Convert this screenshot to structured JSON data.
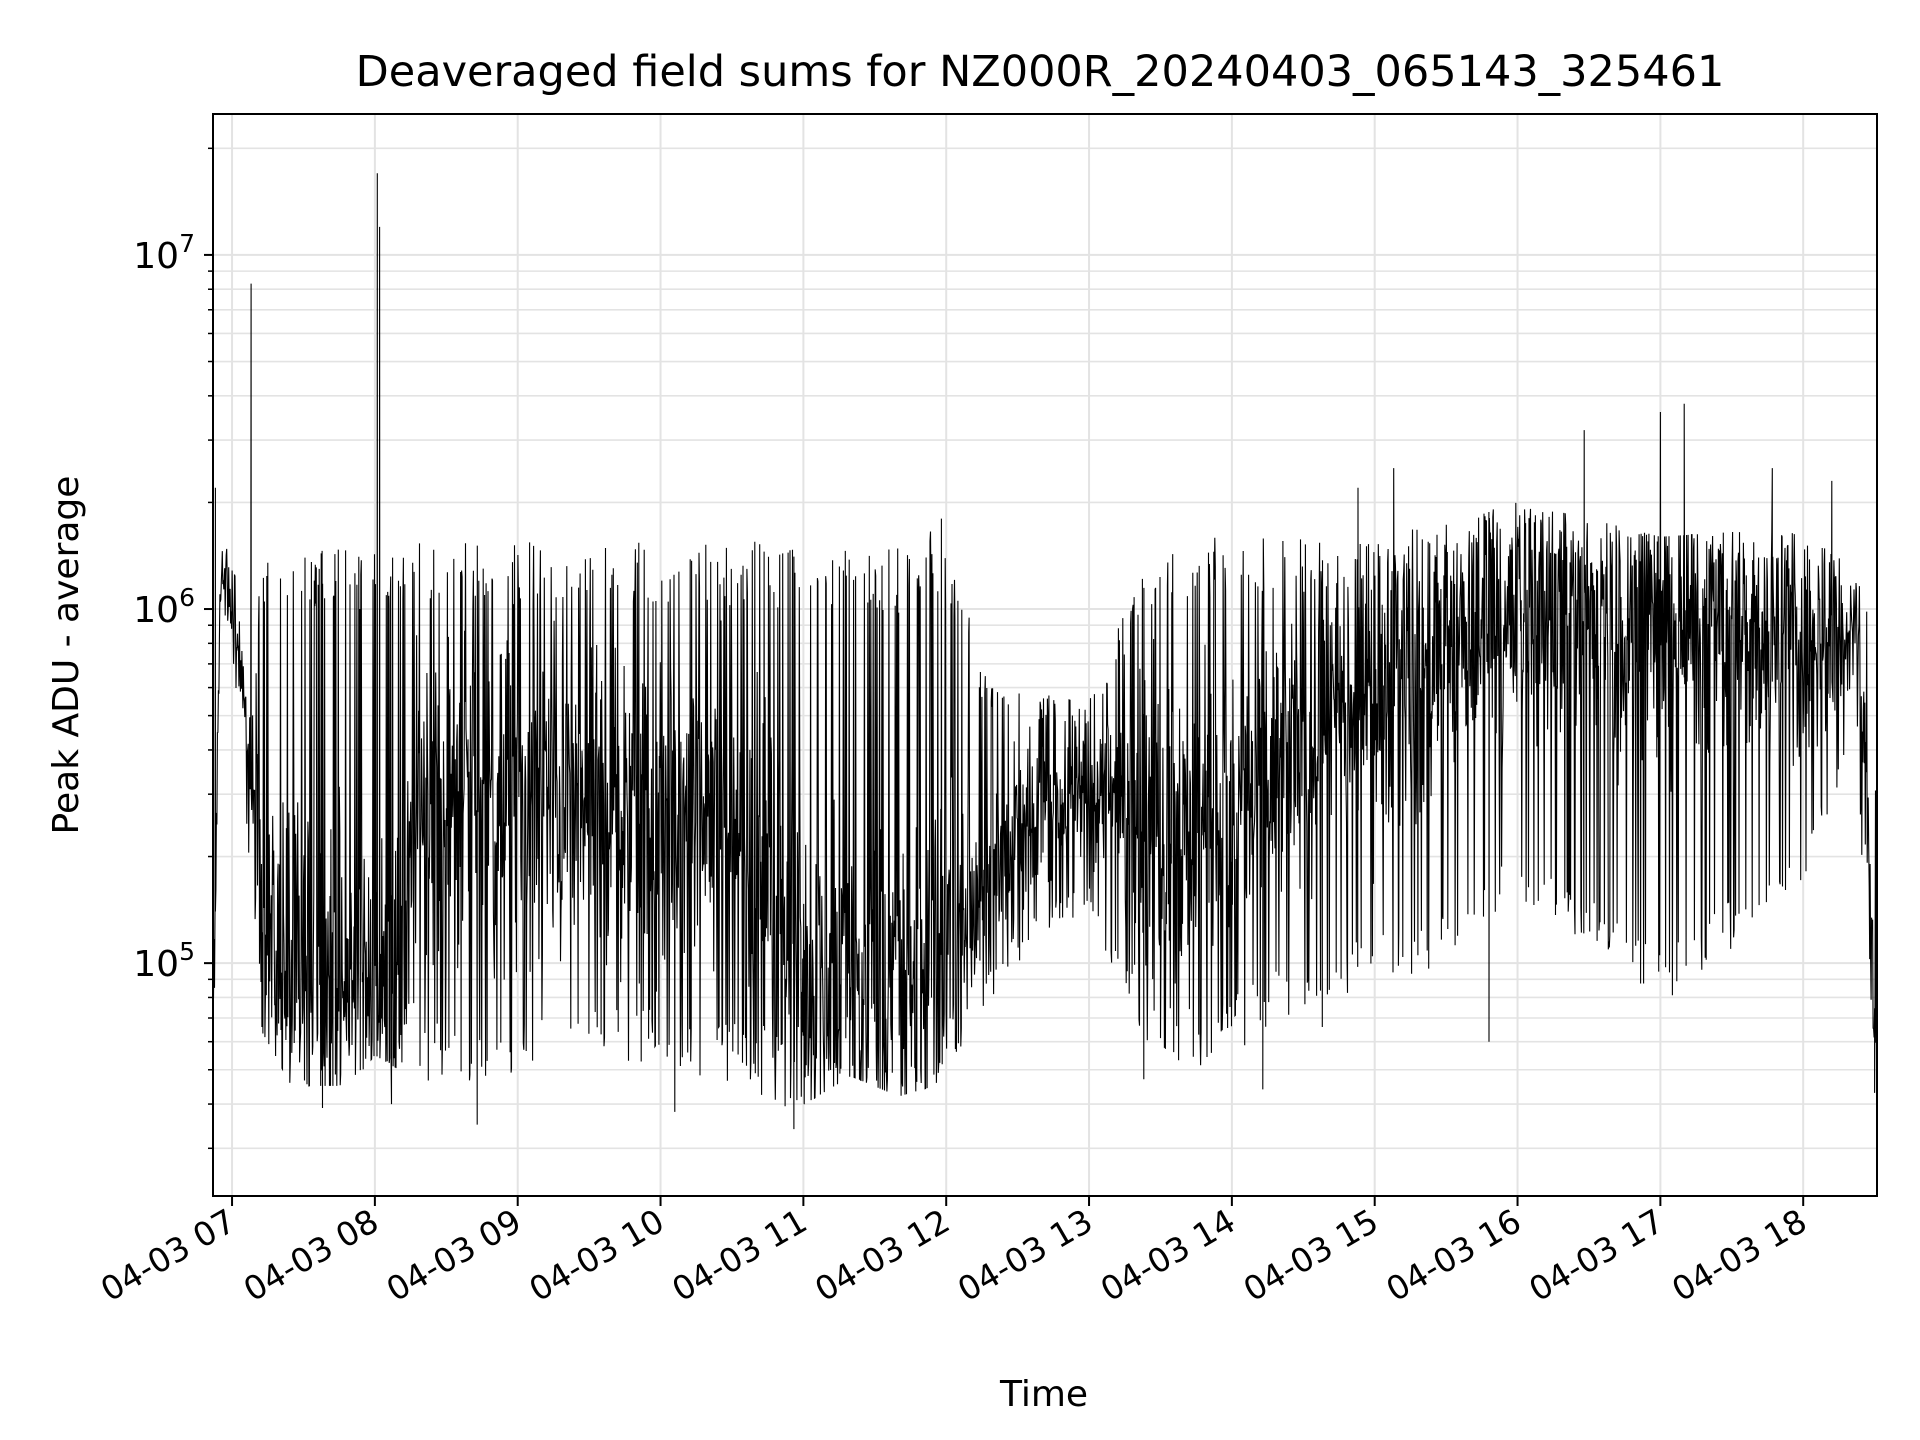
{
  "chart_data": {
    "type": "line",
    "title": "Deaveraged field sums for NZ000R_20240403_065143_325461",
    "xlabel": "Time",
    "ylabel": "Peak ADU - average",
    "yscale": "log",
    "ylim": [
      22000,
      25000000
    ],
    "xlim": [
      "2024-04-03 06:52",
      "2024-04-03 18:31"
    ],
    "grid": true,
    "line_color": "#000000",
    "x_tick_labels": [
      "04-03 07",
      "04-03 08",
      "04-03 09",
      "04-03 10",
      "04-03 11",
      "04-03 12",
      "04-03 13",
      "04-03 14",
      "04-03 15",
      "04-03 16",
      "04-03 17",
      "04-03 18"
    ],
    "x_ticks": [
      "2024-04-03 07:00",
      "2024-04-03 08:00",
      "2024-04-03 09:00",
      "2024-04-03 10:00",
      "2024-04-03 11:00",
      "2024-04-03 12:00",
      "2024-04-03 13:00",
      "2024-04-03 14:00",
      "2024-04-03 15:00",
      "2024-04-03 16:00",
      "2024-04-03 17:00",
      "2024-04-03 18:00"
    ],
    "y_ticks": [
      {
        "value": 100000,
        "base": "10",
        "exp": "5"
      },
      {
        "value": 1000000,
        "base": "10",
        "exp": "6"
      },
      {
        "value": 10000000,
        "base": "10",
        "exp": "7"
      }
    ],
    "series": [
      {
        "x": [
          "2024-04-03 06:52",
          "2024-04-03 06:55",
          "2024-04-03 06:58",
          "2024-04-03 07:02",
          "2024-04-03 07:06",
          "2024-04-03 07:08",
          "2024-04-03 07:12",
          "2024-04-03 07:18",
          "2024-04-03 07:25",
          "2024-04-03 07:35",
          "2024-04-03 07:45",
          "2024-04-03 07:55",
          "2024-04-03 08:00",
          "2024-04-03 08:10",
          "2024-04-03 08:20",
          "2024-04-03 08:40",
          "2024-04-03 09:00",
          "2024-04-03 09:30",
          "2024-04-03 10:00",
          "2024-04-03 10:30",
          "2024-04-03 10:55",
          "2024-04-03 11:20",
          "2024-04-03 11:40",
          "2024-04-03 11:55",
          "2024-04-03 12:20",
          "2024-04-03 12:40",
          "2024-04-03 13:00",
          "2024-04-03 13:25",
          "2024-04-03 13:45",
          "2024-04-03 14:10",
          "2024-04-03 14:40",
          "2024-04-03 15:00",
          "2024-04-03 15:30",
          "2024-04-03 16:00",
          "2024-04-03 16:30",
          "2024-04-03 17:00",
          "2024-04-03 17:30",
          "2024-04-03 18:00",
          "2024-04-03 18:15",
          "2024-04-03 18:22",
          "2024-04-03 18:27",
          "2024-04-03 18:31"
        ],
        "center": [
          50000,
          1200000,
          1150000,
          800000,
          420000,
          330000,
          150000,
          120000,
          100000,
          90000,
          88000,
          90000,
          92000,
          85000,
          330000,
          300000,
          280000,
          280000,
          260000,
          240000,
          120000,
          85000,
          88000,
          95000,
          180000,
          280000,
          300000,
          280000,
          230000,
          320000,
          450000,
          550000,
          750000,
          950000,
          950000,
          870000,
          850000,
          800000,
          850000,
          950000,
          250000,
          60000
        ],
        "low": [
          45000,
          1000000,
          900000,
          550000,
          230000,
          180000,
          65000,
          55000,
          45000,
          45000,
          45000,
          50000,
          55000,
          50000,
          45000,
          42000,
          45000,
          48000,
          50000,
          45000,
          38000,
          48000,
          42000,
          45000,
          80000,
          120000,
          140000,
          50000,
          50000,
          60000,
          80000,
          85000,
          100000,
          150000,
          110000,
          75000,
          110000,
          160000,
          300000,
          600000,
          70000,
          42000
        ],
        "high": [
          2200000,
          1500000,
          1500000,
          1200000,
          550000,
          500000,
          1350000,
          1400000,
          1450000,
          1500000,
          1500000,
          1450000,
          1500000,
          1500000,
          1550000,
          1600000,
          1550000,
          1550000,
          1550000,
          1550000,
          1550000,
          1500000,
          1500000,
          1800000,
          600000,
          580000,
          560000,
          1500000,
          1600000,
          1600000,
          1600000,
          1600000,
          1750000,
          2000000,
          1800000,
          1600000,
          1650000,
          1650000,
          1600000,
          1500000,
          1000000,
          300000
        ],
        "spikes": [
          {
            "x": "2024-04-03 06:53",
            "y": 2200000
          },
          {
            "x": "2024-04-03 07:08",
            "y": 8300000
          },
          {
            "x": "2024-04-03 08:01",
            "y": 17000000
          },
          {
            "x": "2024-04-03 08:02",
            "y": 12000000
          },
          {
            "x": "2024-04-03 11:58",
            "y": 1800000
          },
          {
            "x": "2024-04-03 14:53",
            "y": 2200000
          },
          {
            "x": "2024-04-03 15:08",
            "y": 2500000
          },
          {
            "x": "2024-04-03 16:28",
            "y": 3200000
          },
          {
            "x": "2024-04-03 17:00",
            "y": 3600000
          },
          {
            "x": "2024-04-03 17:10",
            "y": 3800000
          },
          {
            "x": "2024-04-03 17:47",
            "y": 2500000
          },
          {
            "x": "2024-04-03 18:12",
            "y": 2300000
          }
        ],
        "dips": [
          {
            "x": "2024-04-03 07:38",
            "y": 39000
          },
          {
            "x": "2024-04-03 08:07",
            "y": 40000
          },
          {
            "x": "2024-04-03 08:43",
            "y": 35000
          },
          {
            "x": "2024-04-03 10:06",
            "y": 38000
          },
          {
            "x": "2024-04-03 10:56",
            "y": 34000
          },
          {
            "x": "2024-04-03 13:23",
            "y": 47000
          },
          {
            "x": "2024-04-03 14:13",
            "y": 44000
          },
          {
            "x": "2024-04-03 14:38",
            "y": 66000
          },
          {
            "x": "2024-04-03 15:48",
            "y": 60000
          },
          {
            "x": "2024-04-03 18:30",
            "y": 43000
          }
        ]
      }
    ]
  }
}
